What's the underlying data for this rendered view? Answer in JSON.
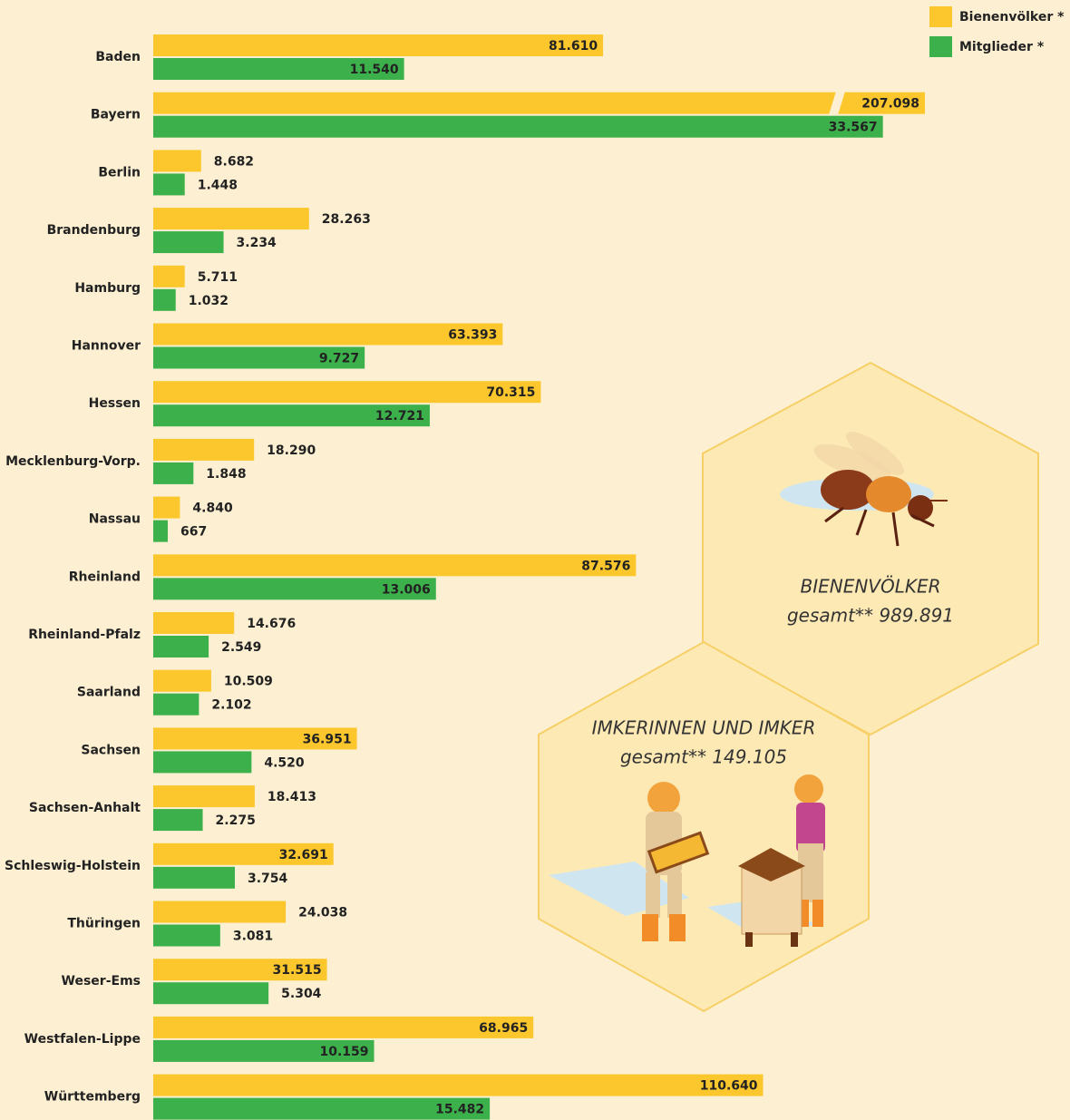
{
  "chart_data": {
    "type": "grouped-hbar",
    "categories": [
      "Baden",
      "Bayern",
      "Berlin",
      "Brandenburg",
      "Hamburg",
      "Hannover",
      "Hessen",
      "Mecklenburg-Vorp.",
      "Nassau",
      "Rheinland",
      "Rheinland-Pfalz",
      "Saarland",
      "Sachsen",
      "Sachsen-Anhalt",
      "Schleswig-Holstein",
      "Thüringen",
      "Weser-Ems",
      "Westfalen-Lippe",
      "Württemberg"
    ],
    "series": [
      {
        "name": "Bienenvölker *",
        "color": "#fcc72c",
        "label_color": "#222222",
        "xlim": [
          0,
          140000
        ],
        "values": [
          81610,
          207098,
          8682,
          28263,
          5711,
          63393,
          70315,
          18290,
          4840,
          87576,
          14676,
          10509,
          36951,
          18413,
          32691,
          24038,
          31515,
          68965,
          110640
        ],
        "value_labels": [
          "81.610",
          "207.098",
          "8.682",
          "28.263",
          "5.711",
          "63.393",
          "70.315",
          "18.290",
          "4.840",
          "87.576",
          "14.676",
          "10.509",
          "36.951",
          "18.413",
          "32.691",
          "24.038",
          "31.515",
          "68.965",
          "110.640"
        ]
      },
      {
        "name": "Mitglieder *",
        "color": "#3cb04a",
        "label_color": "#ffffff",
        "xlim": [
          0,
          35500
        ],
        "values": [
          11540,
          33567,
          1448,
          3234,
          1032,
          9727,
          12721,
          1848,
          667,
          13006,
          2549,
          2102,
          4520,
          2275,
          3754,
          3081,
          5304,
          10159,
          15482
        ],
        "value_labels": [
          "11.540",
          "33.567",
          "1.448",
          "3.234",
          "1.032",
          "9.727",
          "12.721",
          "1.848",
          "667",
          "13.006",
          "2.549",
          "2.102",
          "4.520",
          "2.275",
          "3.754",
          "3.081",
          "5.304",
          "10.159",
          "15.482"
        ]
      }
    ],
    "legend": "top-right",
    "annotations": [
      {
        "title": "BIENENVÖLKER",
        "text": "gesamt** 989.891"
      },
      {
        "title": "IMKERINNEN UND IMKER",
        "text": "gesamt** 149.105"
      }
    ]
  }
}
